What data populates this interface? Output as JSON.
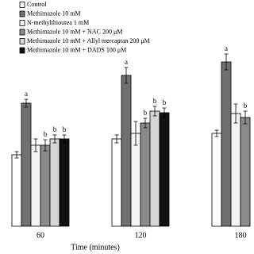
{
  "chart_data": {
    "type": "bar",
    "x_label": "Time (minutes)",
    "categories": [
      "60",
      "120",
      "180"
    ],
    "ylim": [
      0,
      250
    ],
    "series": [
      {
        "name": "Control",
        "color": "#ffffff",
        "values": [
          90,
          110,
          117
        ],
        "errors": [
          4,
          5,
          4
        ],
        "annotations": [
          null,
          null,
          null
        ]
      },
      {
        "name": "Methimazole 10 mM",
        "color": "#707070",
        "values": [
          155,
          190,
          207
        ],
        "errors": [
          5,
          10,
          10
        ],
        "annotations": [
          "a",
          "a",
          "a"
        ]
      },
      {
        "name": "N-methylthiourea 1 mM",
        "color": "#f4f4f4",
        "values": [
          102,
          117,
          142
        ],
        "errors": [
          8,
          15,
          12
        ],
        "annotations": [
          null,
          null,
          null
        ]
      },
      {
        "name": "Methimazole 10 mM + NAC 200 μM",
        "color": "#8a8a8a",
        "values": [
          102,
          130,
          137
        ],
        "errors": [
          7,
          6,
          8
        ],
        "annotations": [
          "b",
          "b",
          "b"
        ]
      },
      {
        "name": "Methimazole 10 mM + Allyl mercaptan 200 μM",
        "color": "#d6d6d6",
        "values": [
          110,
          145,
          null
        ],
        "errors": [
          5,
          6,
          null
        ],
        "annotations": [
          "b",
          "b",
          null
        ]
      },
      {
        "name": "Methimazole 10 mM + DADS 100 μM",
        "color": "#111111",
        "values": [
          110,
          143,
          null
        ],
        "errors": [
          5,
          6,
          null
        ],
        "annotations": [
          "b",
          "b",
          null
        ]
      }
    ]
  }
}
